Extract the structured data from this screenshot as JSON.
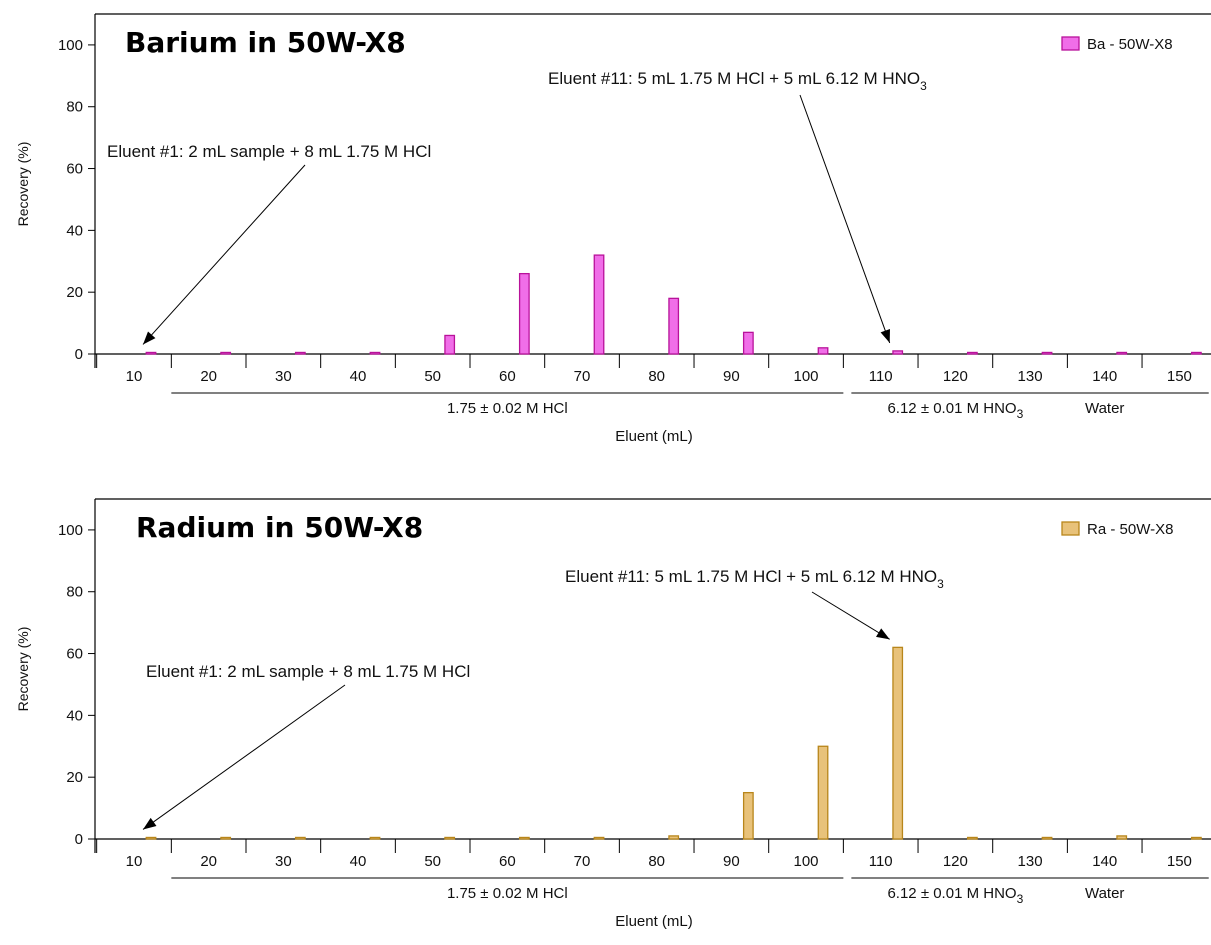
{
  "chart_data": [
    {
      "type": "bar",
      "title": "Barium in 50W-X8",
      "xlabel": "Eluent (mL)",
      "ylabel": "Recovery (%)",
      "ylim": [
        0,
        110
      ],
      "yticks": [
        0,
        20,
        40,
        60,
        80,
        100
      ],
      "xticks": [
        10,
        20,
        30,
        40,
        50,
        60,
        70,
        80,
        90,
        100,
        110,
        120,
        130,
        140,
        150
      ],
      "legend_position": "top-right",
      "series": [
        {
          "name": "Ba - 50W-X8",
          "color": "#f06ee8",
          "stroke": "#b8129a",
          "values": [
            0.5,
            0.5,
            0.5,
            0.5,
            6,
            26,
            32,
            18,
            7,
            2,
            1,
            0.5,
            0.5,
            0.5,
            0.5
          ]
        }
      ],
      "regions": [
        {
          "label": "1.75 ± 0.02 M HCl",
          "from": 10,
          "to": 100
        },
        {
          "label": "6.12 ± 0.01 M HNO",
          "sub": "3",
          "from": 110,
          "to": 130
        },
        {
          "label": "Water",
          "from": 130,
          "to": 150
        }
      ],
      "annotations": [
        {
          "text": "Eluent #1: 2 mL sample + 8 mL 1.75 M HCl",
          "sub": "",
          "target_index": 0
        },
        {
          "text": "Eluent #11: 5 mL 1.75 M HCl + 5 mL 6.12 M HNO",
          "sub": "3",
          "target_index": 10
        }
      ]
    },
    {
      "type": "bar",
      "title": "Radium in 50W-X8",
      "xlabel": "Eluent (mL)",
      "ylabel": "Recovery (%)",
      "ylim": [
        0,
        110
      ],
      "yticks": [
        0,
        20,
        40,
        60,
        80,
        100
      ],
      "xticks": [
        10,
        20,
        30,
        40,
        50,
        60,
        70,
        80,
        90,
        100,
        110,
        120,
        130,
        140,
        150
      ],
      "legend_position": "top-right",
      "series": [
        {
          "name": "Ra - 50W-X8",
          "color": "#e8c27a",
          "stroke": "#b8861b",
          "values": [
            0.5,
            0.5,
            0.5,
            0.5,
            0.5,
            0.5,
            0.5,
            1,
            15,
            30,
            62,
            0.5,
            0.5,
            1,
            0.5
          ]
        }
      ],
      "regions": [
        {
          "label": "1.75 ± 0.02 M HCl",
          "from": 10,
          "to": 100
        },
        {
          "label": "6.12 ± 0.01 M HNO",
          "sub": "3",
          "from": 110,
          "to": 130
        },
        {
          "label": "Water",
          "from": 130,
          "to": 150
        }
      ],
      "annotations": [
        {
          "text": "Eluent #1: 2 mL sample + 8 mL 1.75 M HCl",
          "sub": "",
          "target_index": 0
        },
        {
          "text": "Eluent #11: 5 mL 1.75 M HCl + 5 mL 6.12 M HNO",
          "sub": "3",
          "target_index": 10
        }
      ]
    }
  ]
}
